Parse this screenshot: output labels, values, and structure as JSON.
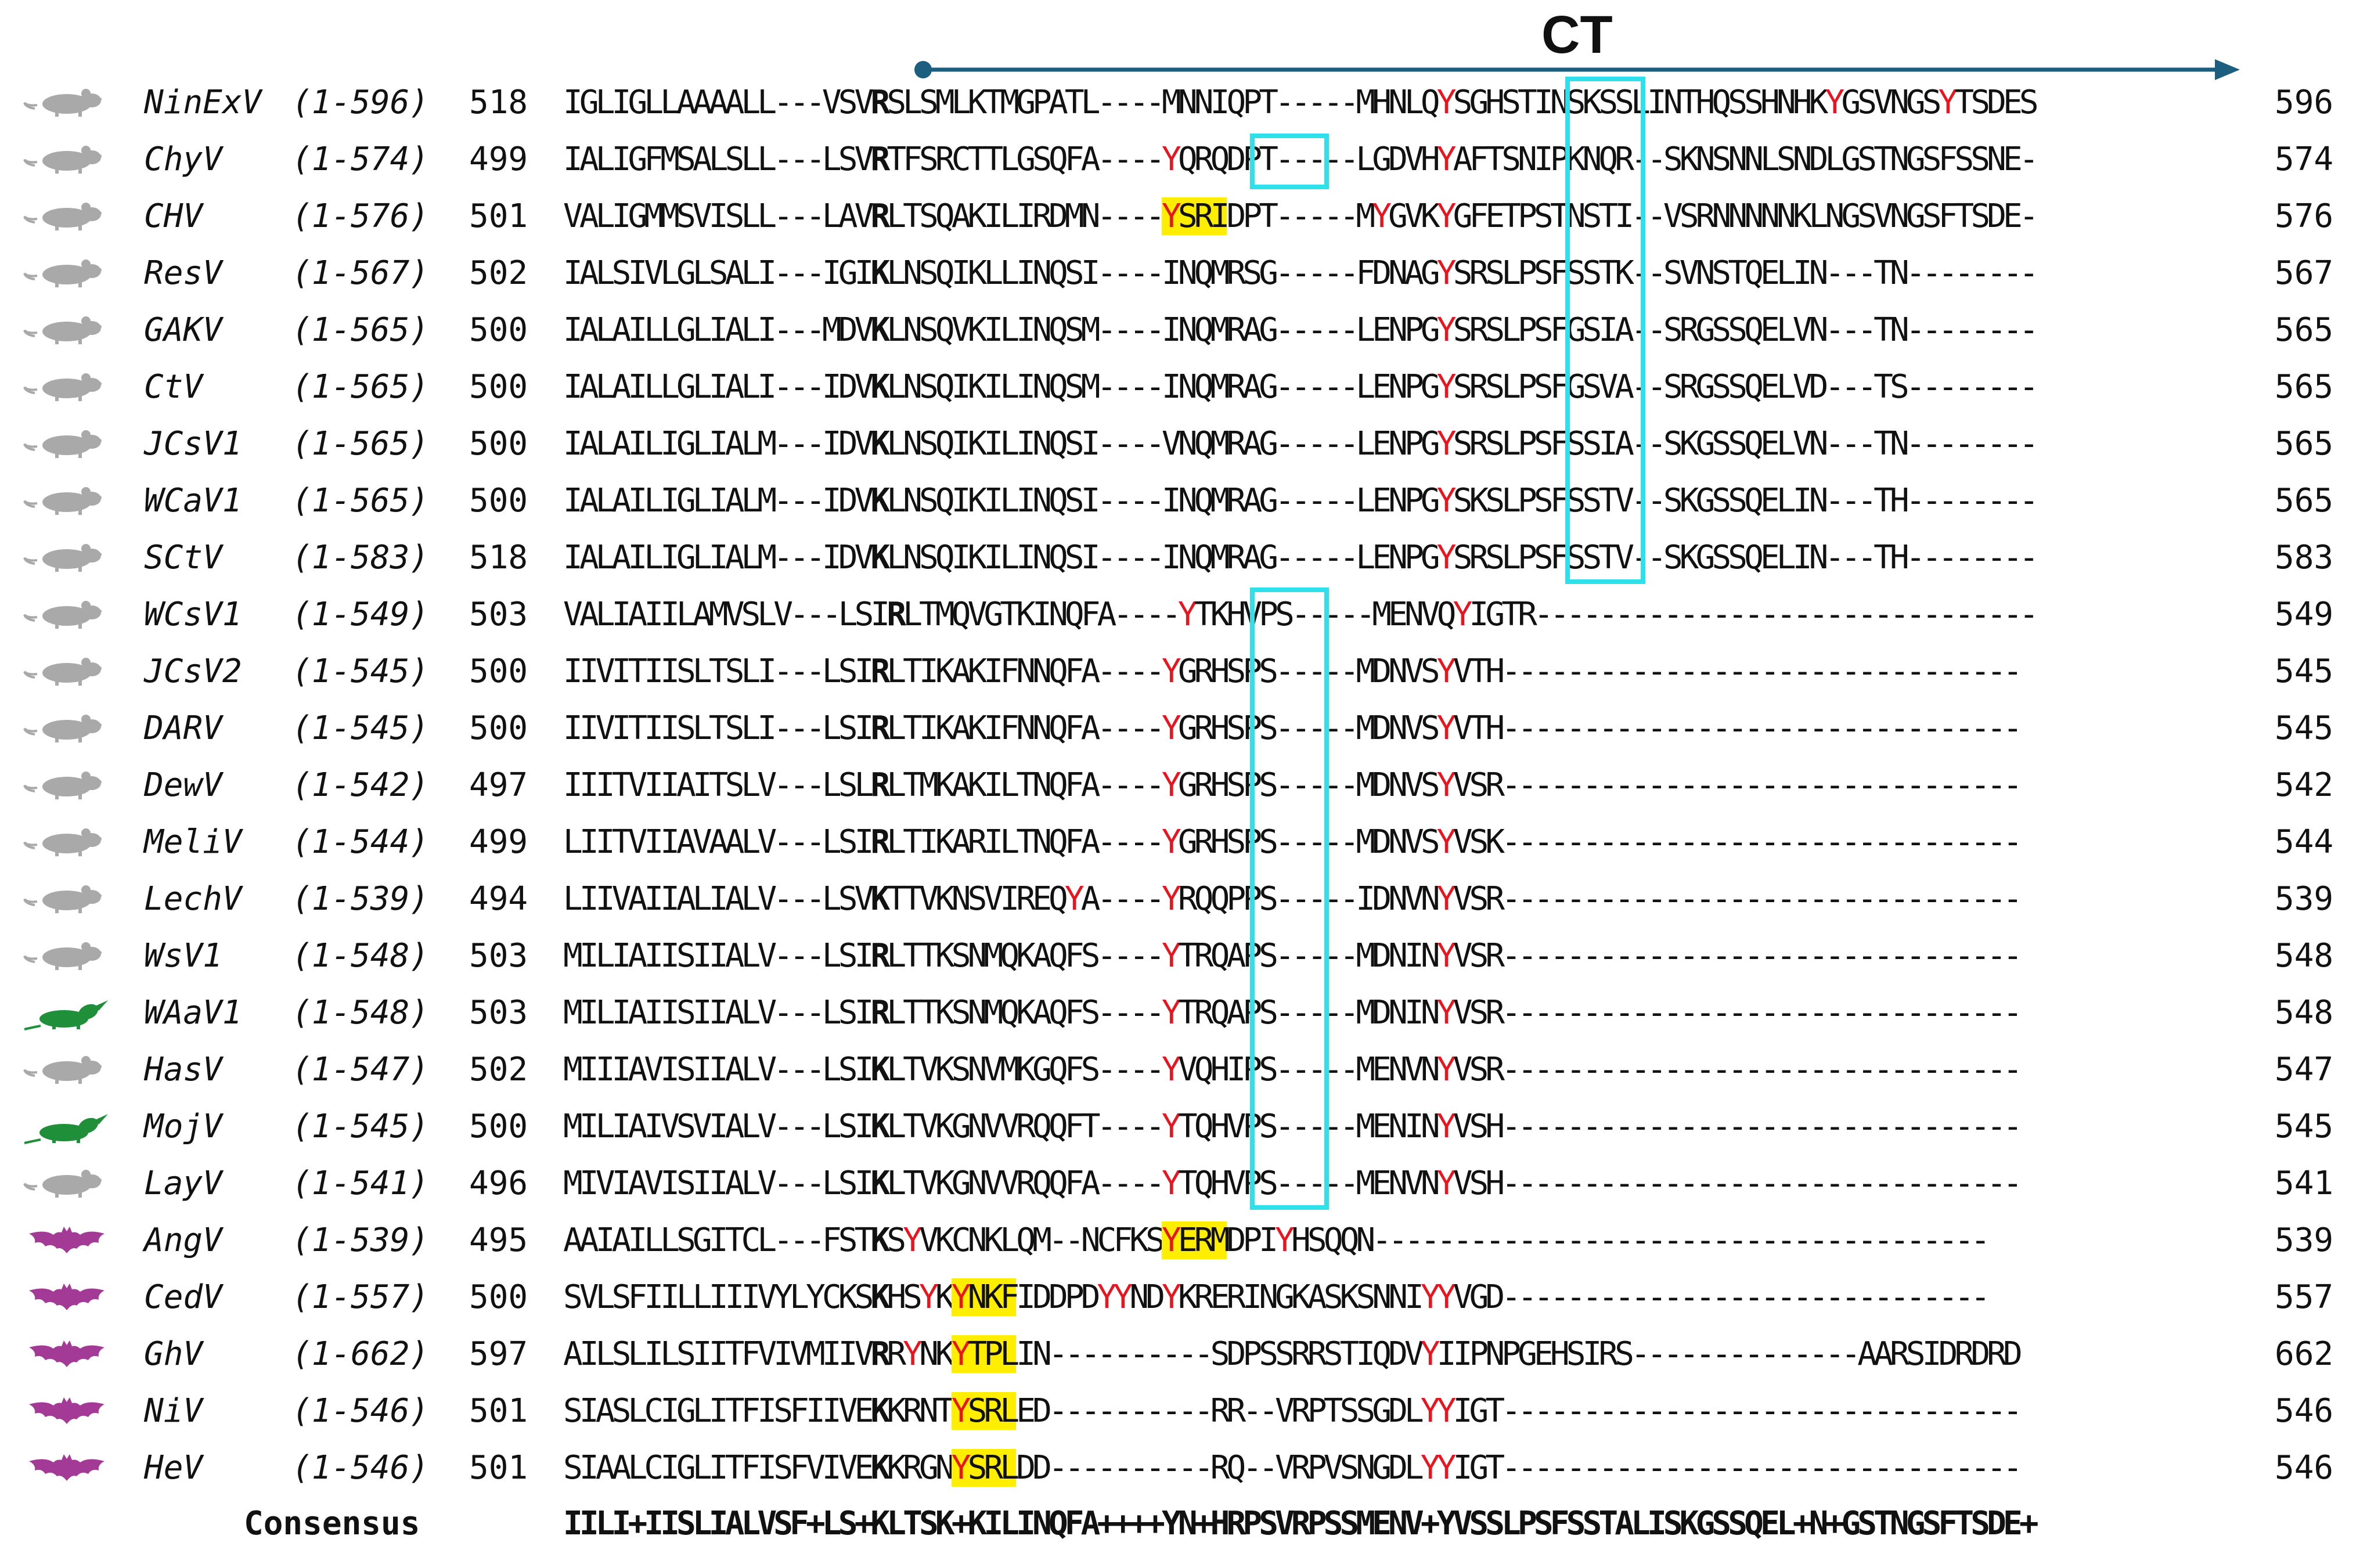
{
  "region_label": "CT",
  "colors": {
    "arrow": "#1b5e80",
    "box": "#2de0ea",
    "tyrosine": "#e8141e",
    "highlight": "#ffee00",
    "rodent": "#a9a9a9",
    "shrew": "#1f8f3a",
    "bat": "#a23a96"
  },
  "rows": [
    {
      "host": "rodent-icon",
      "name": "NinExV",
      "range": "(1-596)",
      "start": "518",
      "end": "596",
      "seq": "IGLIGLLAAAALL---VSV[R]SLSMLKTMGPATL----MNNIQPT-----MHNLQ{Y}SGHSTINSKSSLINTHQSSHNHK{Y}GSVNGS{Y}TSDES"
    },
    {
      "host": "rodent-icon",
      "name": "ChyV",
      "range": "(1-574)",
      "start": "499",
      "end": "574",
      "seq": "IALIGFMSALSLL---LSV[R]TFSRCTTLGSQFA----{Y}QRQDPT-----LGDVH{Y}AFTSNIPKNQR--SKNSNNLSNDLGSTNGSFSSNE-"
    },
    {
      "host": "rodent-icon",
      "name": "CHV",
      "range": "(1-576)",
      "start": "501",
      "end": "576",
      "seq": "VALIGMMSVISLL---LAV[R]LTSQAKILIRDMN----<{Y}SRI>DPT-----M{Y}GVK{Y}GFETPSTNSTI--VSRNNNNNKLNGSVNGSFTSDE-"
    },
    {
      "host": "rodent-icon",
      "name": "ResV",
      "range": "(1-567)",
      "start": "502",
      "end": "567",
      "seq": "IALSIVLGLSALI---IGI[K]LNSQIKLLINQSI----INQMRSG-----FDNAG{Y}SRSLPSFSSTK--SVNSTQELIN---TN--------"
    },
    {
      "host": "rodent-icon",
      "name": "GAKV",
      "range": "(1-565)",
      "start": "500",
      "end": "565",
      "seq": "IALAILLGLIALI---MDV[K]LNSQVKILINQSM----INQMRAG-----LENPG{Y}SRSLPSFGSIA--SRGSSQELVN---TN--------"
    },
    {
      "host": "rodent-icon",
      "name": "CtV",
      "range": "(1-565)",
      "start": "500",
      "end": "565",
      "seq": "IALAILLGLIALI---IDV[K]LNSQIKILINQSM----INQMRAG-----LENPG{Y}SRSLPSFGSVA--SRGSSQELVD---TS--------"
    },
    {
      "host": "rodent-icon",
      "name": "JCsV1",
      "range": "(1-565)",
      "start": "500",
      "end": "565",
      "seq": "IALAILIGLIALM---IDV[K]LNSQIKILINQSI----VNQMRAG-----LENPG{Y}SRSLPSFSSIA--SKGSSQELVN---TN--------"
    },
    {
      "host": "rodent-icon",
      "name": "WCaV1",
      "range": "(1-565)",
      "start": "500",
      "end": "565",
      "seq": "IALAILIGLIALM---IDV[K]LNSQIKILINQSI----INQMRAG-----LENPG{Y}SKSLPSFSSTV--SKGSSQELIN---TH--------"
    },
    {
      "host": "rodent-icon",
      "name": "SCtV",
      "range": "(1-583)",
      "start": "518",
      "end": "583",
      "seq": "IALAILIGLIALM---IDV[K]LNSQIKILINQSI----INQMRAG-----LENPG{Y}SRSLPSFSSTV--SKGSSQELIN---TH--------"
    },
    {
      "host": "rodent-icon",
      "name": "WCsV1",
      "range": "(1-549)",
      "start": "503",
      "end": "549",
      "seq": "VALIAIILAMVSLV---LSI[R]LTMQVGTKINQFA----{Y}TKHVPS-----MENVQ{Y}IGTR-------------------------------"
    },
    {
      "host": "rodent-icon",
      "name": "JCsV2",
      "range": "(1-545)",
      "start": "500",
      "end": "545",
      "seq": "IIVITIISLTSLI---LSI[R]LTIKAKIFNNQFA----{Y}GRHSPS-----MDNVS{Y}VTH--------------------------------"
    },
    {
      "host": "rodent-icon",
      "name": "DARV",
      "range": "(1-545)",
      "start": "500",
      "end": "545",
      "seq": "IIVITIISLTSLI---LSI[R]LTIKAKIFNNQFA----{Y}GRHSPS-----MDNVS{Y}VTH--------------------------------"
    },
    {
      "host": "rodent-icon",
      "name": "DewV",
      "range": "(1-542)",
      "start": "497",
      "end": "542",
      "seq": "IIITVIIAITSLV---LSL[R]LTMKAKILTNQFA----{Y}GRHSPS-----MDNVS{Y}VSR--------------------------------"
    },
    {
      "host": "rodent-icon",
      "name": "MeliV",
      "range": "(1-544)",
      "start": "499",
      "end": "544",
      "seq": "LIITVIIAVAALV---LSI[R]LTIKARILTNQFA----{Y}GRHSPS-----MDNVS{Y}VSK--------------------------------"
    },
    {
      "host": "rodent-icon",
      "name": "LechV",
      "range": "(1-539)",
      "start": "494",
      "end": "539",
      "seq": "LIIVAIIALIALV---LSV[K]TTVKNSVIREQ{Y}A----{Y}RQQPPS-----IDNVN{Y}VSR--------------------------------"
    },
    {
      "host": "rodent-icon",
      "name": "WsV1",
      "range": "(1-548)",
      "start": "503",
      "end": "548",
      "seq": "MILIAIISIIALV---LSI[R]LTTKSNMQKAQFS----{Y}TRQAPS-----MDNIN{Y}VSR--------------------------------"
    },
    {
      "host": "shrew-icon",
      "name": "WAaV1",
      "range": "(1-548)",
      "start": "503",
      "end": "548",
      "seq": "MILIAIISIIALV---LSI[R]LTTKSNMQKAQFS----{Y}TRQAPS-----MDNIN{Y}VSR--------------------------------"
    },
    {
      "host": "rodent-icon",
      "name": "HasV",
      "range": "(1-547)",
      "start": "502",
      "end": "547",
      "seq": "MIIIAVISIIALV---LSI[K]LTVKSNVMKGQFS----{Y}VQHIPS-----MENVN{Y}VSR--------------------------------"
    },
    {
      "host": "shrew-icon",
      "name": "MojV",
      "range": "(1-545)",
      "start": "500",
      "end": "545",
      "seq": "MILIAIVSVIALV---LSI[K]LTVKGNVVRQQFT----{Y}TQHVPS-----MENIN{Y}VSH--------------------------------"
    },
    {
      "host": "rodent-icon",
      "name": "LayV",
      "range": "(1-541)",
      "start": "496",
      "end": "541",
      "seq": "MIVIAVISIIALV---LSI[K]LTVKGNVVRQQFA----{Y}TQHVPS-----MENVN{Y}VSH--------------------------------"
    },
    {
      "host": "bat-icon",
      "name": "AngV",
      "range": "(1-539)",
      "start": "495",
      "end": "539",
      "seq": "AAIAILLSGITCL---FST[K]S{Y}VKCNKLQM--NCFKS<{Y}ERM>DPI{Y}HSQQN--------------------------------------"
    },
    {
      "host": "bat-icon",
      "name": "CedV",
      "range": "(1-557)",
      "start": "500",
      "end": "557",
      "seq": "SVLSFIILLIIIVYLYCKS[K]HS{Y}K<{Y}NKF>IDDPD{Y}{Y}ND{Y}KRERINGKASKSNNI{Y}{Y}VGD------------------------------"
    },
    {
      "host": "bat-icon",
      "name": "GhV",
      "range": "(1-662)",
      "start": "597",
      "end": "662",
      "seq": "AILSLILSIITFVIVMIIV[R]R{Y}NK<{Y}TPL>IN----------SDPSSRRSTIQDV{Y}IIPNPGEHSIRS--------------AARSIDRDRD"
    },
    {
      "host": "bat-icon",
      "name": "NiV",
      "range": "(1-546)",
      "start": "501",
      "end": "546",
      "seq": "SIASLCIGLITFISFIIVE[K]KRNT<{Y}SRL>ED----------RR--VRPTSSGDL{Y}{Y}IGT--------------------------------"
    },
    {
      "host": "bat-icon",
      "name": "HeV",
      "range": "(1-546)",
      "start": "501",
      "end": "546",
      "seq": "SIAALCIGLITFISFVIVE[K]KRGN<{Y}SRL>DD----------RQ--VRPVSNGDL{Y}{Y}IGT--------------------------------"
    }
  ],
  "consensus": {
    "label": "Consensus",
    "seq": "IILI+IISLIALVSF+LS+KLTSK+KILINQFA++++YN+HRPSVRPSSMENV+YVSSLPSFSSTALISKGSSQEL+N+GSTNGSFTSDE+"
  }
}
